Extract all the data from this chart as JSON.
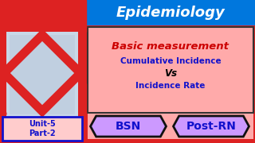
{
  "bg_color": "#dd2222",
  "title_text": "Epidemiology",
  "title_color": "#1111cc",
  "title_bg": "#ff4444",
  "left_bg": "#dd2222",
  "photo_bg": "#b8c8e0",
  "unit_text": "Unit-5\nPart-2",
  "unit_color": "#1111cc",
  "unit_bg": "#ffcccc",
  "unit_border": "#1111cc",
  "center_bg": "#ffaaaa",
  "center_border": "#000000",
  "basic_text": "Basic measurement",
  "basic_color": "#cc0000",
  "cumulative_text": "Cumulative Incidence",
  "cumulative_color": "#1111cc",
  "vs_text": "Vs",
  "vs_color": "#000000",
  "incidence_text": "Incidence Rate",
  "incidence_color": "#1111cc",
  "bottom_bg": "#dd2222",
  "bottom_inner_bg": "#ffaaaa",
  "bsn_text": "BSN",
  "bsn_color": "#1111cc",
  "bsn_bg": "#cc99ff",
  "postrn_text": "Post-RN",
  "postrn_color": "#1111cc",
  "postrn_bg": "#cc99ff",
  "btn_border": "#111111",
  "epi_bg": "#0077dd"
}
